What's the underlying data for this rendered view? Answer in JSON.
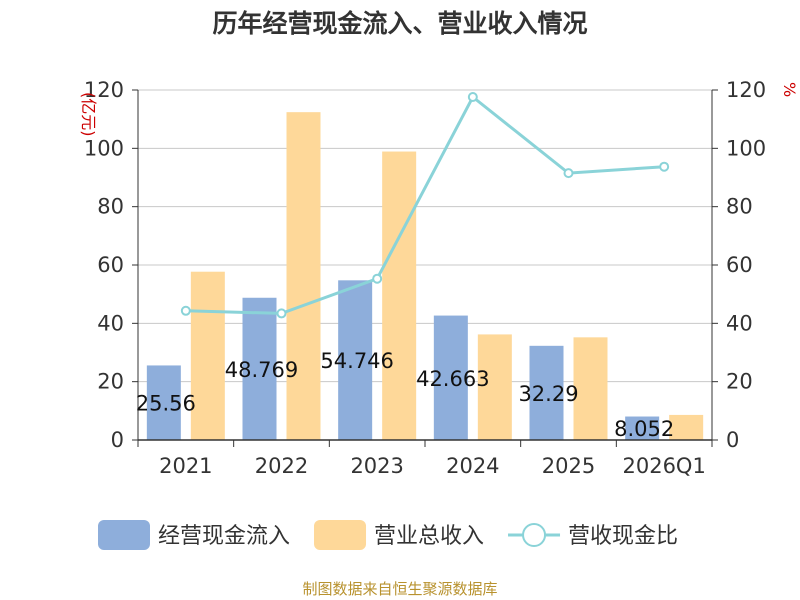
{
  "chart_data": {
    "type": "bar",
    "title": "历年经营现金流入、营业收入情况",
    "categories": [
      "2021",
      "2022",
      "2023",
      "2024",
      "2025",
      "2026Q1"
    ],
    "left_axis": {
      "unit": "(亿元)",
      "ylim": [
        0,
        120
      ],
      "ticks": [
        0,
        20,
        40,
        60,
        80,
        100,
        120
      ]
    },
    "right_axis": {
      "unit": "%",
      "ylim": [
        0,
        120
      ],
      "ticks": [
        0,
        20,
        40,
        60,
        80,
        100,
        120
      ]
    },
    "grid": true,
    "legend_position": "bottom",
    "series": [
      {
        "name": "经营现金流入",
        "kind": "bar",
        "axis": "left",
        "color": "#8eaedb",
        "values": [
          25.562,
          48.769,
          54.746,
          42.663,
          32.29,
          8.052
        ],
        "labels": [
          "25.56",
          "48.769",
          "54.746",
          "42.663",
          "32.29",
          "8.052"
        ]
      },
      {
        "name": "营业总收入",
        "kind": "bar",
        "axis": "left",
        "color": "#fed899",
        "values": [
          57.7,
          112.4,
          98.9,
          36.2,
          35.2,
          8.6
        ]
      },
      {
        "name": "营收现金比",
        "kind": "line",
        "axis": "right",
        "color": "#8ad3d8",
        "values": [
          44.3,
          43.4,
          55.3,
          117.6,
          91.5,
          93.7
        ]
      }
    ]
  },
  "source": "制图数据来自恒生聚源数据库"
}
